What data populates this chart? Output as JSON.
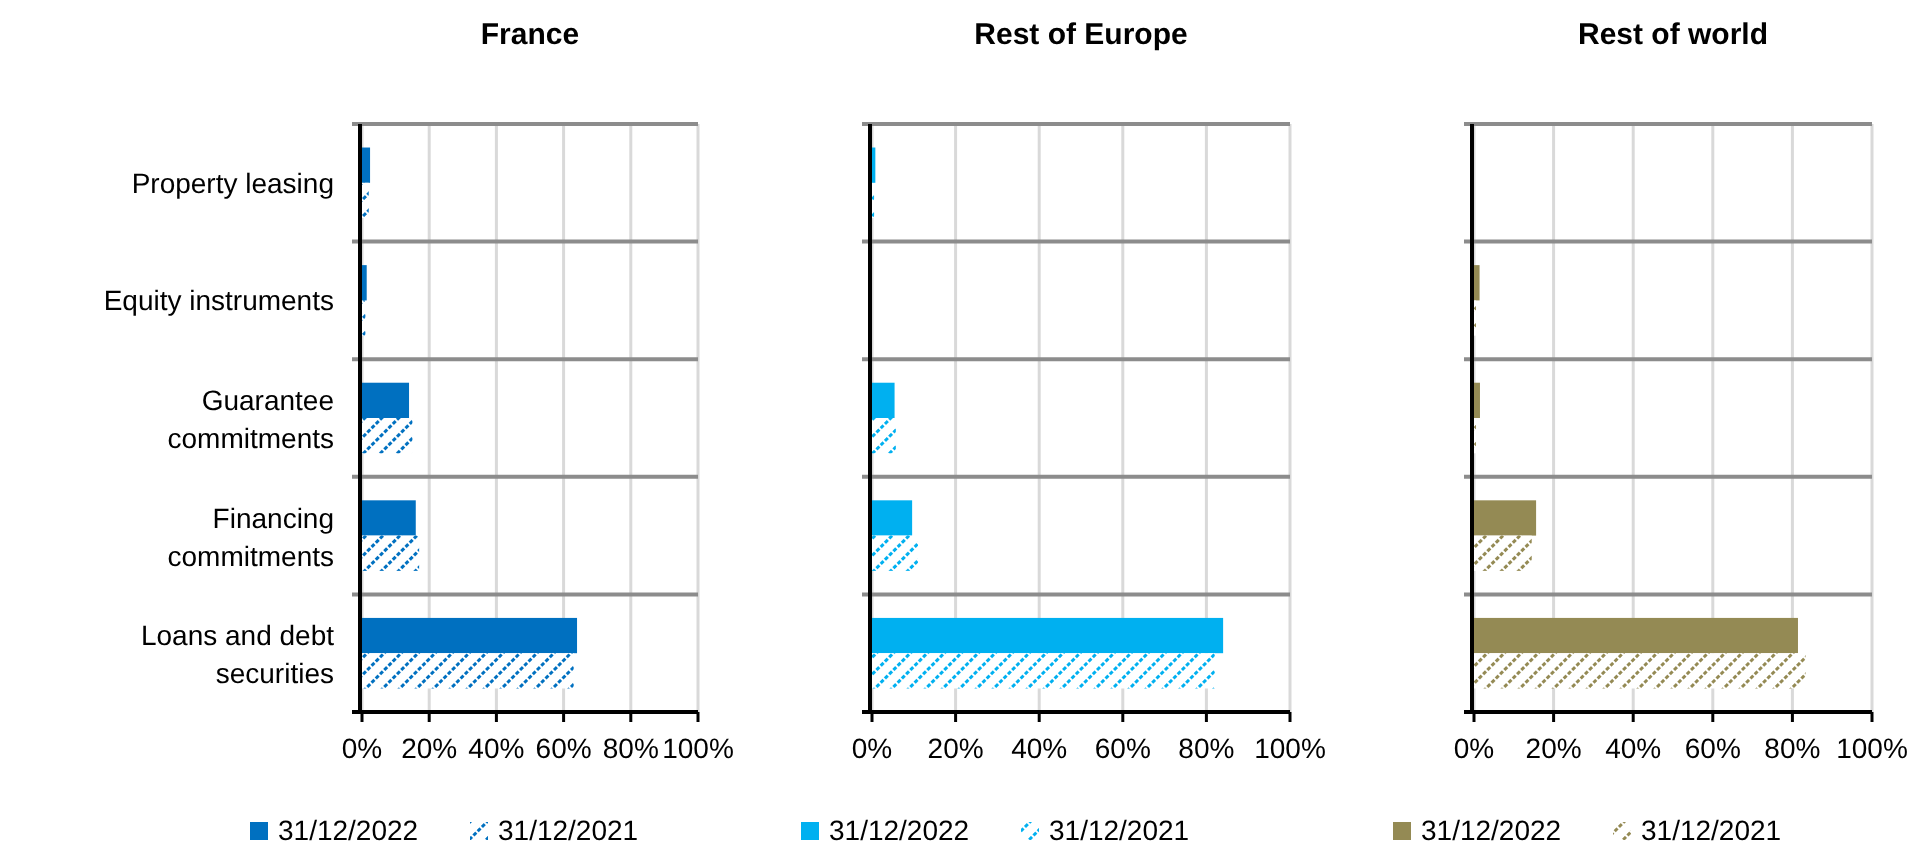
{
  "chart_data": [
    {
      "type": "bar",
      "orientation": "horizontal",
      "title": "France",
      "categories": [
        "Property leasing",
        "Equity instruments",
        "Guarantee commitments",
        "Financing commitments",
        "Loans and debt securities"
      ],
      "series": [
        {
          "name": "31/12/2022",
          "color": "#0070c0",
          "values": [
            2.4,
            1.4,
            14,
            16,
            64
          ]
        },
        {
          "name": "31/12/2021",
          "color": "#0070c0",
          "values": [
            2,
            1,
            15,
            17,
            63
          ]
        }
      ],
      "xlim": [
        0,
        100
      ],
      "xticks": [
        {
          "value": 0,
          "label": "0%"
        },
        {
          "value": 20,
          "label": "20%"
        },
        {
          "value": 40,
          "label": "40%"
        },
        {
          "value": 60,
          "label": "60%"
        },
        {
          "value": 80,
          "label": "80%"
        },
        {
          "value": 100,
          "label": "100%"
        }
      ],
      "grid": "x",
      "legend": "bottom"
    },
    {
      "type": "bar",
      "orientation": "horizontal",
      "title": "Rest of Europe",
      "categories": [
        null,
        null,
        null,
        null,
        null
      ],
      "series": [
        {
          "name": "31/12/2022",
          "color": "#00b0f0",
          "values": [
            0.8,
            0,
            5.4,
            9.6,
            84
          ]
        },
        {
          "name": "31/12/2021",
          "color": "#00b0f0",
          "values": [
            0.5,
            0,
            5.7,
            11,
            82
          ]
        }
      ],
      "xlim": [
        0,
        100
      ],
      "xticks": [
        {
          "value": 0,
          "label": "0%"
        },
        {
          "value": 20,
          "label": "20%"
        },
        {
          "value": 40,
          "label": "40%"
        },
        {
          "value": 60,
          "label": "60%"
        },
        {
          "value": 80,
          "label": "80%"
        },
        {
          "value": 100,
          "label": "100%"
        }
      ],
      "grid": "x",
      "legend": "bottom",
      "tick_labels": "x"
    },
    {
      "type": "bar",
      "orientation": "horizontal",
      "title": "Rest of world",
      "categories": [
        null,
        null,
        null,
        null,
        null
      ],
      "series": [
        {
          "name": "31/12/2022",
          "color": "#948a54",
          "values": [
            0,
            1.4,
            1.5,
            15.6,
            81.4
          ]
        },
        {
          "name": "31/12/2021",
          "color": "#948a54",
          "values": [
            0,
            0.5,
            0.5,
            14.5,
            83.3
          ]
        }
      ],
      "xlim": [
        0,
        100
      ],
      "xticks": [
        {
          "value": 0,
          "label": "0%"
        },
        {
          "value": 20,
          "label": "20%"
        },
        {
          "value": 40,
          "label": "40%"
        },
        {
          "value": 60,
          "label": "60%"
        },
        {
          "value": 80,
          "label": "80%"
        },
        {
          "value": 100,
          "label": "100%"
        }
      ],
      "grid": "x",
      "legend": "bottom",
      "tick_labels": "x"
    }
  ]
}
